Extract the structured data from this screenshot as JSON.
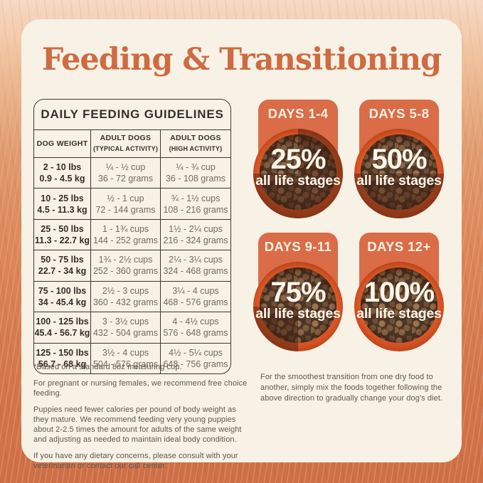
{
  "page": {
    "title": "Feeding & Transitioning"
  },
  "table": {
    "title": "DAILY FEEDING GUIDELINES",
    "columns": [
      {
        "label": "DOG WEIGHT",
        "sub": ""
      },
      {
        "label": "ADULT DOGS",
        "sub": "(TYPICAL ACTIVITY)"
      },
      {
        "label": "ADULT DOGS",
        "sub": "(HIGH ACTIVITY)"
      }
    ],
    "rows": [
      {
        "weight_lbs": "2 - 10 lbs",
        "weight_kg": "0.9 - 4.5 kg",
        "typical_cups": "¼ - ½ cup",
        "typical_grams": "36 - 72 grams",
        "high_cups": "¼ - ¾ cup",
        "high_grams": "36 - 108 grams"
      },
      {
        "weight_lbs": "10 - 25 lbs",
        "weight_kg": "4.5 - 11.3 kg",
        "typical_cups": "½ - 1 cup",
        "typical_grams": "72 - 144 grams",
        "high_cups": "¾ - 1½ cups",
        "high_grams": "108 - 216 grams"
      },
      {
        "weight_lbs": "25 - 50 lbs",
        "weight_kg": "11.3 - 22.7 kg",
        "typical_cups": "1 - 1¾ cups",
        "typical_grams": "144 - 252 grams",
        "high_cups": "1½ - 2¼ cups",
        "high_grams": "216 - 324 grams"
      },
      {
        "weight_lbs": "50 - 75 lbs",
        "weight_kg": "22.7 - 34 kg",
        "typical_cups": "1¾ - 2½ cups",
        "typical_grams": "252 - 360 grams",
        "high_cups": "2¼ - 3¼ cups",
        "high_grams": "324 - 468 grams"
      },
      {
        "weight_lbs": "75 - 100 lbs",
        "weight_kg": "34 - 45.4 kg",
        "typical_cups": "2½ - 3 cups",
        "typical_grams": "360 - 432 grams",
        "high_cups": "3¼ - 4 cups",
        "high_grams": "468 - 576 grams"
      },
      {
        "weight_lbs": "100 - 125 lbs",
        "weight_kg": "45.4 - 56.7 kg",
        "typical_cups": "3 - 3½ cups",
        "typical_grams": "432 - 504 grams",
        "high_cups": "4 - 4½ cups",
        "high_grams": "576 - 648 grams"
      },
      {
        "weight_lbs": "125 - 150 lbs",
        "weight_kg": "56.7 - 68 kg",
        "typical_cups": "3½ - 4 cups",
        "typical_grams": "504 - 576 grams",
        "high_cups": "4½ - 5¼ cups",
        "high_grams": "648 - 756 grams"
      }
    ]
  },
  "notes": [
    "*Based on a standard 8oz measuring cup.",
    "For pregnant or nursing females, we recommend free choice feeding.",
    "Puppies need fewer calories per pound of body weight as they mature. We recommend feeding very young puppies about 2-2.5 times the amount for adults of the same weight and adjusting as needed to maintain ideal body condition.",
    "If you have any dietary concerns, please consult with your veterinarian or contact our call center."
  ],
  "transition": {
    "steps": [
      {
        "days": "DAYS 1-4",
        "percent": "25%",
        "label": "all life stages",
        "fill_percent": 25
      },
      {
        "days": "DAYS 5-8",
        "percent": "50%",
        "label": "all life stages",
        "fill_percent": 50
      },
      {
        "days": "DAYS 9-11",
        "percent": "75%",
        "label": "all life stages",
        "fill_percent": 75
      },
      {
        "days": "DAYS 12+",
        "percent": "100%",
        "label": "all life stages",
        "fill_percent": 100
      }
    ],
    "note": "For the smoothest transition from one dry food to another, simply mix the foods together following the above direction to gradually change your dog's diet."
  },
  "colors": {
    "card_background": "#f8f1e5",
    "title_orange": "#ce6b42",
    "badge_orange": "#da6c48",
    "bowl_rim_orange": "#e05a28",
    "table_line_dark": "#3a3831",
    "body_gray": "#5d5850",
    "value_gray": "#716b62",
    "background_peach_top": "#f3c9a9",
    "background_orange_bottom": "#ce6f46"
  }
}
